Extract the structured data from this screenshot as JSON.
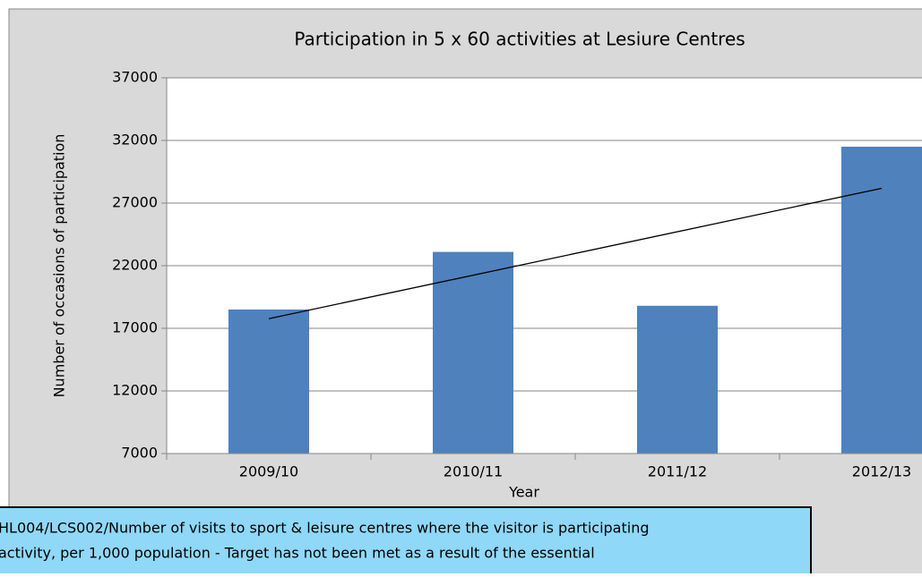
{
  "chart_data": {
    "type": "bar",
    "title": "Participation in 5 x 60 activities at Lesiure Centres",
    "x_label": "Year",
    "y_label": "Number of occasions of participation",
    "categories": [
      "2009/10",
      "2010/11",
      "2011/12",
      "2012/13"
    ],
    "values": [
      18500,
      23100,
      18800,
      31500
    ],
    "color": "#4f81bd",
    "ylim": [
      7000,
      37000
    ],
    "yticks": [
      7000,
      12000,
      17000,
      22000,
      27000,
      32000,
      37000
    ],
    "grid": true,
    "trendline": "linear",
    "annotation": [
      "HL004/LCS002/Number of visits to sport & leisure centres where the visitor is participating",
      "activity, per 1,000 population - Target has not been met as a result of the essential"
    ]
  }
}
